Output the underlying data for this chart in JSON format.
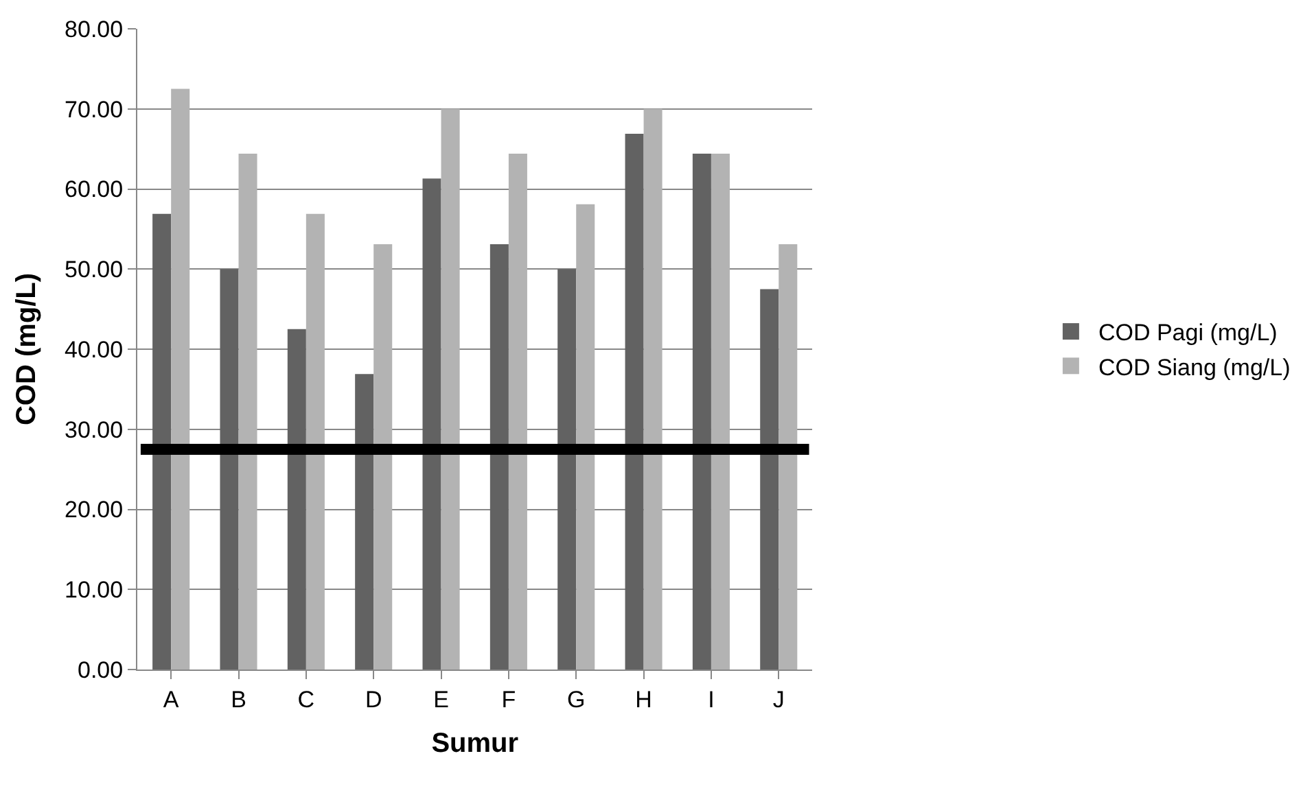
{
  "chart_data": {
    "type": "bar",
    "xlabel": "Sumur",
    "ylabel": "COD (mg/L)",
    "categories": [
      "A",
      "B",
      "C",
      "D",
      "E",
      "F",
      "G",
      "H",
      "I",
      "J"
    ],
    "series": [
      {
        "name": "COD Pagi (mg/L)",
        "color": "#626262",
        "values": [
          56.9,
          50.0,
          42.5,
          36.9,
          61.3,
          53.1,
          50.0,
          66.9,
          64.4,
          47.5
        ]
      },
      {
        "name": "COD Siang (mg/L)",
        "color": "#b3b3b3",
        "values": [
          72.5,
          64.4,
          56.9,
          53.1,
          70.0,
          64.4,
          58.1,
          70.0,
          64.4,
          53.1
        ]
      }
    ],
    "ylim": [
      0,
      80
    ],
    "yticks": [
      {
        "value": 0,
        "label": "0.00"
      },
      {
        "value": 10,
        "label": "10.00"
      },
      {
        "value": 20,
        "label": "20.00"
      },
      {
        "value": 30,
        "label": "30.00"
      },
      {
        "value": 40,
        "label": "40.00"
      },
      {
        "value": 50,
        "label": "50.00"
      },
      {
        "value": 60,
        "label": "60.00"
      },
      {
        "value": 70,
        "label": "70.00"
      },
      {
        "value": 80,
        "label": "80.00"
      }
    ],
    "ref_lines": [
      {
        "axis": "y",
        "value": 27.5,
        "label": null,
        "color": "#000000",
        "line_style": "solid"
      }
    ],
    "grid": "y",
    "legend": "right"
  }
}
